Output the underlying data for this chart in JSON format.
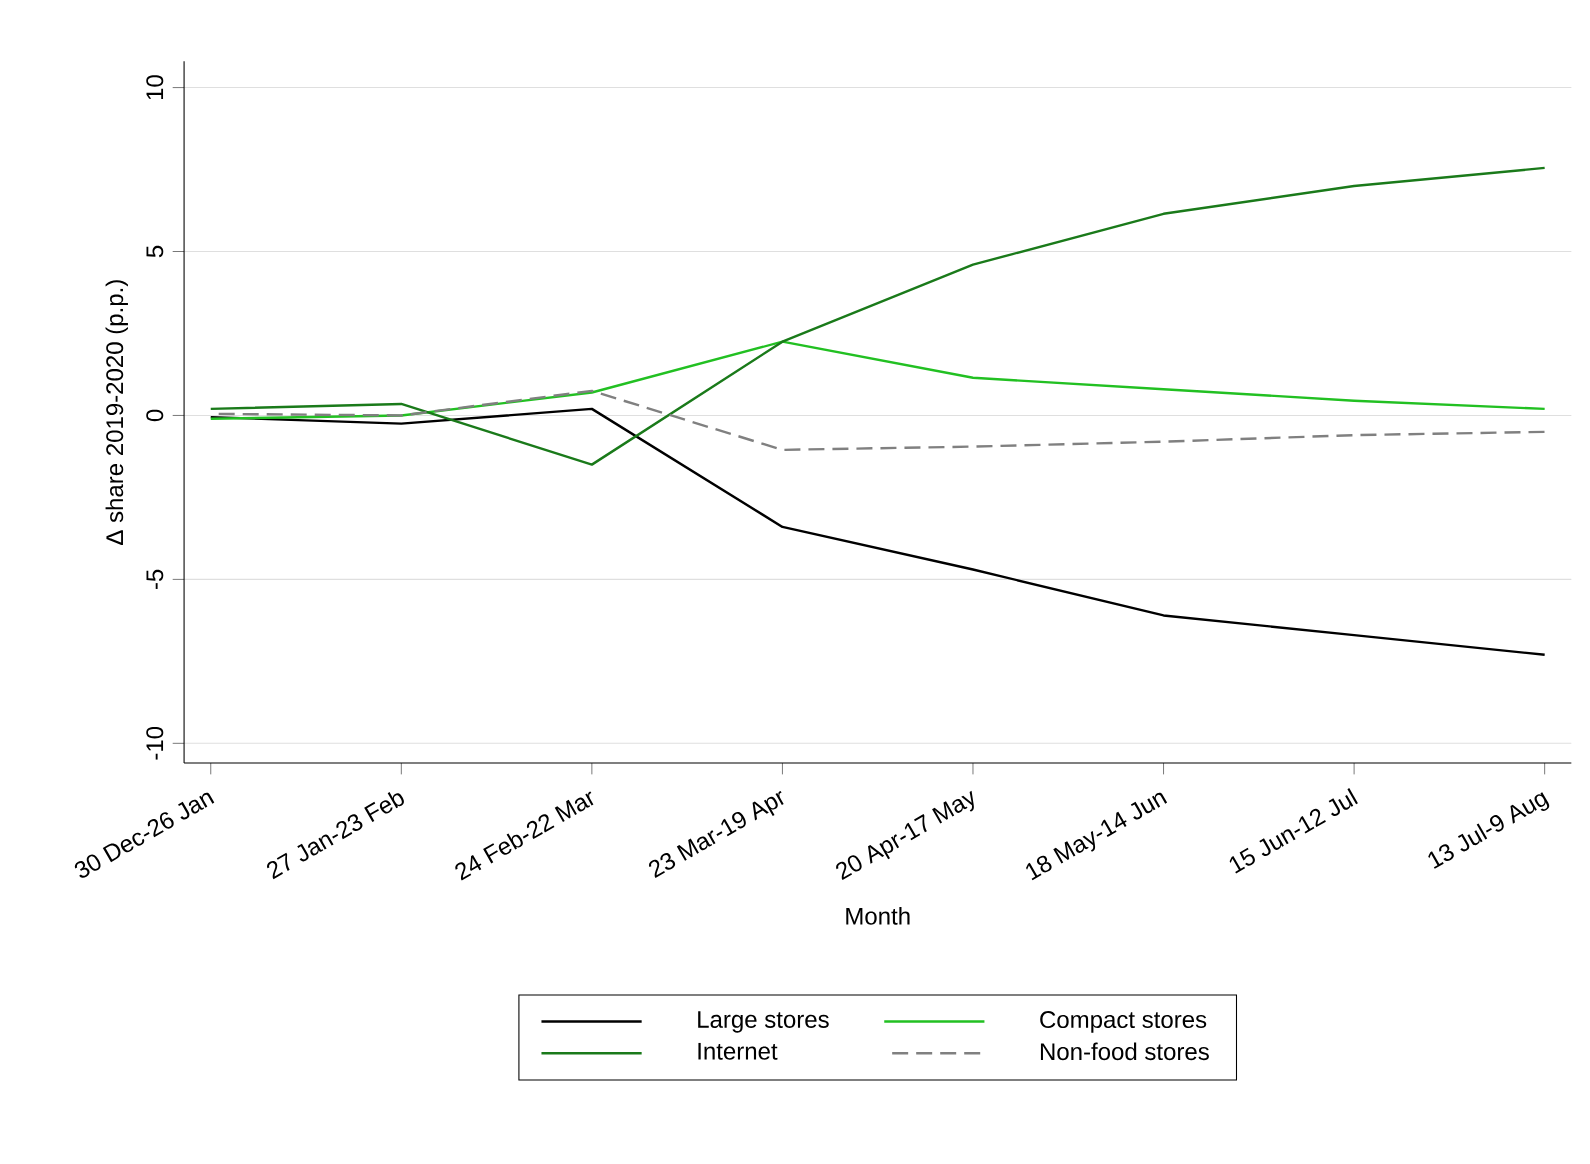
{
  "chart_data": {
    "type": "line",
    "xlabel": "Month",
    "ylabel": "Δ share 2019-2020 (p.p.)",
    "categories": [
      "30 Dec-26 Jan",
      "27 Jan-23 Feb",
      "24 Feb-22 Mar",
      "23 Mar-19 Apr",
      "20 Apr-17 May",
      "18 May-14 Jun",
      "15 Jun-12 Jul",
      "13 Jul-9 Aug"
    ],
    "series": [
      {
        "name": "Large stores",
        "color": "#000000",
        "values": [
          -0.05,
          -0.25,
          0.2,
          -3.4,
          -4.7,
          -6.1,
          -6.7,
          -7.3
        ]
      },
      {
        "name": "Compact stores",
        "color": "#22c022",
        "values": [
          -0.1,
          0,
          0.7,
          2.25,
          1.15,
          0.8,
          0.45,
          0.2
        ]
      },
      {
        "name": "Internet",
        "color": "#1a7a1a",
        "values": [
          0.2,
          0.35,
          -1.5,
          2.25,
          4.6,
          6.15,
          7.0,
          7.55
        ]
      },
      {
        "name": "Non-food stores",
        "color": "#808080",
        "values": [
          0.05,
          0,
          0.75,
          -1.05,
          -0.95,
          -0.8,
          -0.6,
          -0.5
        ],
        "line_style": "dashed"
      }
    ],
    "ylim": [
      -10.6,
      10.8
    ],
    "yticks": [
      -10,
      -5,
      0,
      5,
      10
    ],
    "grid": "y",
    "legend": "bottom",
    "marker": "none"
  }
}
